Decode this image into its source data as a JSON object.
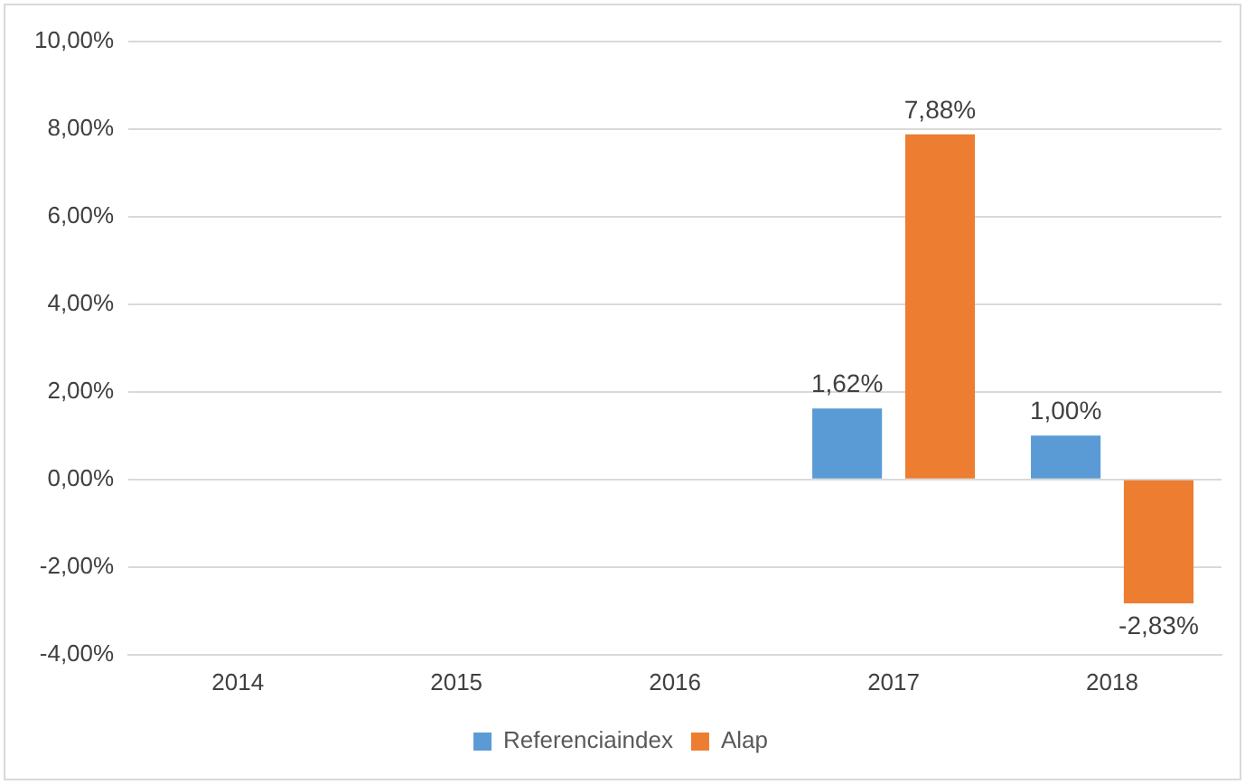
{
  "chart_data": {
    "type": "bar",
    "categories": [
      "2014",
      "2015",
      "2016",
      "2017",
      "2018"
    ],
    "series": [
      {
        "name": "Referenciaindex",
        "color": "#5b9bd5",
        "values": [
          null,
          null,
          null,
          1.62,
          1.0
        ],
        "value_labels": [
          null,
          null,
          null,
          "1,62%",
          "1,00%"
        ]
      },
      {
        "name": "Alap",
        "color": "#ed7d31",
        "values": [
          null,
          null,
          null,
          7.88,
          -2.83
        ],
        "value_labels": [
          null,
          null,
          null,
          "7,88%",
          "-2,83%"
        ]
      }
    ],
    "ylim": [
      -4,
      10
    ],
    "yticks": [
      {
        "value": -4,
        "label": "-4,00%"
      },
      {
        "value": -2,
        "label": "-2,00%"
      },
      {
        "value": 0,
        "label": "0,00%"
      },
      {
        "value": 2,
        "label": "2,00%"
      },
      {
        "value": 4,
        "label": "4,00%"
      },
      {
        "value": 6,
        "label": "6,00%"
      },
      {
        "value": 8,
        "label": "8,00%"
      },
      {
        "value": 10,
        "label": "10,00%"
      }
    ],
    "grid": "y",
    "legend": "bottom"
  }
}
